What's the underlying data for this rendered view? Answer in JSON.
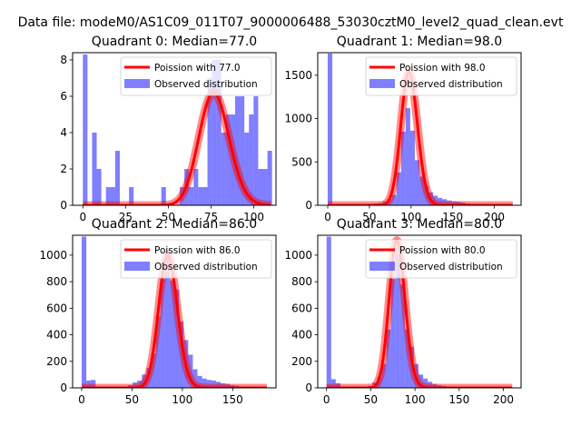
{
  "figure_title": "Data file: modeM0/AS1C09_011T07_9000006488_53030cztM0_level2_quad_clean.evt",
  "colors": {
    "hist": "#0000ff",
    "hist_alpha": 0.5,
    "poisson": "#ff0000",
    "poisson_shade": "#ff0000",
    "axes": "#000000",
    "background": "#ffffff"
  },
  "chart_data": [
    {
      "type": "bar",
      "title": "Quadrant 0: Median=77.0",
      "xlabel": "",
      "ylabel": "",
      "xlim": [
        -6,
        113
      ],
      "ylim": [
        0,
        8.4
      ],
      "xticks": [
        0,
        25,
        50,
        75,
        100
      ],
      "yticks": [
        0,
        2,
        4,
        6,
        8
      ],
      "grid": false,
      "legend_position": "top-right",
      "legend": [
        "Poission with 77.0",
        "Observed distribution"
      ],
      "bin_width": 2.7,
      "series": [
        {
          "name": "Observed distribution",
          "kind": "histogram",
          "bins": [
            {
              "x": 0,
              "count": 8.3
            },
            {
              "x": 5.4,
              "count": 4
            },
            {
              "x": 8.1,
              "count": 2
            },
            {
              "x": 13.5,
              "count": 1
            },
            {
              "x": 16.2,
              "count": 1
            },
            {
              "x": 18.9,
              "count": 3
            },
            {
              "x": 27,
              "count": 1
            },
            {
              "x": 45.9,
              "count": 1
            },
            {
              "x": 56.7,
              "count": 1
            },
            {
              "x": 59.4,
              "count": 2
            },
            {
              "x": 62.1,
              "count": 1
            },
            {
              "x": 64.8,
              "count": 2
            },
            {
              "x": 67.5,
              "count": 1
            },
            {
              "x": 70.2,
              "count": 1
            },
            {
              "x": 72.9,
              "count": 7
            },
            {
              "x": 75.6,
              "count": 8
            },
            {
              "x": 78.3,
              "count": 8
            },
            {
              "x": 81,
              "count": 4
            },
            {
              "x": 83.7,
              "count": 5
            },
            {
              "x": 86.4,
              "count": 5
            },
            {
              "x": 89.1,
              "count": 6
            },
            {
              "x": 91.8,
              "count": 6
            },
            {
              "x": 94.5,
              "count": 4
            },
            {
              "x": 97.2,
              "count": 5
            },
            {
              "x": 99.9,
              "count": 6
            },
            {
              "x": 102.6,
              "count": 2
            },
            {
              "x": 105.3,
              "count": 2
            },
            {
              "x": 108,
              "count": 3
            }
          ]
        },
        {
          "name": "Poission with 77.0",
          "kind": "poisson",
          "mean": 77.0,
          "peak": 6.2,
          "x_range": [
            0,
            110
          ]
        }
      ]
    },
    {
      "type": "bar",
      "title": "Quadrant 1: Median=98.0",
      "xlabel": "",
      "ylabel": "",
      "xlim": [
        -12,
        232
      ],
      "ylim": [
        0,
        1760
      ],
      "xticks": [
        0,
        50,
        100,
        150,
        200
      ],
      "yticks": [
        0,
        500,
        1000,
        1500
      ],
      "grid": false,
      "legend_position": "top-right",
      "legend": [
        "Poission with 98.0",
        "Observed distribution"
      ],
      "bin_width": 5.5,
      "series": [
        {
          "name": "Observed distribution",
          "kind": "histogram",
          "bins": [
            {
              "x": 0,
              "count": 1750
            },
            {
              "x": 5.5,
              "count": 10
            },
            {
              "x": 11,
              "count": 10
            },
            {
              "x": 16.5,
              "count": 5
            },
            {
              "x": 22,
              "count": 5
            },
            {
              "x": 27.5,
              "count": 5
            },
            {
              "x": 33,
              "count": 5
            },
            {
              "x": 38.5,
              "count": 5
            },
            {
              "x": 44,
              "count": 5
            },
            {
              "x": 49.5,
              "count": 10
            },
            {
              "x": 55,
              "count": 20
            },
            {
              "x": 60.5,
              "count": 25
            },
            {
              "x": 66,
              "count": 45
            },
            {
              "x": 71.5,
              "count": 70
            },
            {
              "x": 77,
              "count": 120
            },
            {
              "x": 82.5,
              "count": 380
            },
            {
              "x": 88,
              "count": 850
            },
            {
              "x": 93.5,
              "count": 1120
            },
            {
              "x": 99,
              "count": 860
            },
            {
              "x": 104.5,
              "count": 520
            },
            {
              "x": 110,
              "count": 330
            },
            {
              "x": 115.5,
              "count": 220
            },
            {
              "x": 121,
              "count": 150
            },
            {
              "x": 126.5,
              "count": 110
            },
            {
              "x": 132,
              "count": 85
            },
            {
              "x": 137.5,
              "count": 70
            },
            {
              "x": 143,
              "count": 55
            },
            {
              "x": 148.5,
              "count": 45
            },
            {
              "x": 154,
              "count": 40
            },
            {
              "x": 159.5,
              "count": 30
            },
            {
              "x": 165,
              "count": 20
            },
            {
              "x": 170.5,
              "count": 15
            },
            {
              "x": 176,
              "count": 10
            },
            {
              "x": 181.5,
              "count": 8
            },
            {
              "x": 187,
              "count": 5
            },
            {
              "x": 192.5,
              "count": 4
            },
            {
              "x": 198,
              "count": 3
            },
            {
              "x": 203.5,
              "count": 3
            },
            {
              "x": 209,
              "count": 2
            },
            {
              "x": 214.5,
              "count": 2
            }
          ]
        },
        {
          "name": "Poission with 98.0",
          "kind": "poisson",
          "mean": 98.0,
          "peak": 1540,
          "x_range": [
            0,
            222
          ]
        }
      ]
    },
    {
      "type": "bar",
      "title": "Quadrant 2: Median=86.0",
      "xlabel": "",
      "ylabel": "",
      "xlim": [
        -9,
        193
      ],
      "ylim": [
        0,
        1150
      ],
      "xticks": [
        0,
        50,
        100,
        150
      ],
      "yticks": [
        0,
        200,
        400,
        600,
        800,
        1000
      ],
      "grid": false,
      "legend_position": "top-right",
      "legend": [
        "Poission with 86.0",
        "Observed distribution"
      ],
      "bin_width": 4.6,
      "series": [
        {
          "name": "Observed distribution",
          "kind": "histogram",
          "bins": [
            {
              "x": 0,
              "count": 1140
            },
            {
              "x": 4.6,
              "count": 55
            },
            {
              "x": 9.2,
              "count": 60
            },
            {
              "x": 13.8,
              "count": 5
            },
            {
              "x": 18.4,
              "count": 5
            },
            {
              "x": 23,
              "count": 5
            },
            {
              "x": 27.6,
              "count": 5
            },
            {
              "x": 32.2,
              "count": 5
            },
            {
              "x": 36.8,
              "count": 5
            },
            {
              "x": 41.4,
              "count": 10
            },
            {
              "x": 46,
              "count": 20
            },
            {
              "x": 50.6,
              "count": 40
            },
            {
              "x": 55.2,
              "count": 55
            },
            {
              "x": 59.8,
              "count": 100
            },
            {
              "x": 64.4,
              "count": 150
            },
            {
              "x": 69,
              "count": 260
            },
            {
              "x": 73.6,
              "count": 540
            },
            {
              "x": 78.2,
              "count": 820
            },
            {
              "x": 82.8,
              "count": 1040
            },
            {
              "x": 87.4,
              "count": 810
            },
            {
              "x": 92,
              "count": 740
            },
            {
              "x": 96.6,
              "count": 500
            },
            {
              "x": 101.2,
              "count": 360
            },
            {
              "x": 105.8,
              "count": 250
            },
            {
              "x": 110.4,
              "count": 140
            },
            {
              "x": 115,
              "count": 90
            },
            {
              "x": 119.6,
              "count": 70
            },
            {
              "x": 124.2,
              "count": 60
            },
            {
              "x": 128.8,
              "count": 55
            },
            {
              "x": 133.4,
              "count": 45
            },
            {
              "x": 138,
              "count": 35
            },
            {
              "x": 142.6,
              "count": 30
            },
            {
              "x": 147.2,
              "count": 20
            },
            {
              "x": 151.8,
              "count": 15
            },
            {
              "x": 156.4,
              "count": 10
            },
            {
              "x": 161,
              "count": 6
            },
            {
              "x": 165.6,
              "count": 4
            },
            {
              "x": 170.2,
              "count": 3
            },
            {
              "x": 174.8,
              "count": 2
            },
            {
              "x": 179.4,
              "count": 2
            }
          ]
        },
        {
          "name": "Poission with 86.0",
          "kind": "poisson",
          "mean": 86.0,
          "peak": 1000,
          "x_range": [
            0,
            184
          ]
        }
      ]
    },
    {
      "type": "bar",
      "title": "Quadrant 3: Median=80.0",
      "xlabel": "",
      "ylabel": "",
      "xlim": [
        -10,
        220
      ],
      "ylim": [
        0,
        1150
      ],
      "xticks": [
        0,
        50,
        100,
        150,
        200
      ],
      "yticks": [
        0,
        200,
        400,
        600,
        800,
        1000
      ],
      "grid": false,
      "legend_position": "top-right",
      "legend": [
        "Poission with 80.0",
        "Observed distribution"
      ],
      "bin_width": 5.2,
      "series": [
        {
          "name": "Observed distribution",
          "kind": "histogram",
          "bins": [
            {
              "x": 0,
              "count": 1140
            },
            {
              "x": 5.2,
              "count": 65
            },
            {
              "x": 10.4,
              "count": 35
            },
            {
              "x": 15.6,
              "count": 5
            },
            {
              "x": 20.8,
              "count": 5
            },
            {
              "x": 26,
              "count": 5
            },
            {
              "x": 31.2,
              "count": 5
            },
            {
              "x": 36.4,
              "count": 5
            },
            {
              "x": 41.6,
              "count": 10
            },
            {
              "x": 46.8,
              "count": 15
            },
            {
              "x": 52,
              "count": 40
            },
            {
              "x": 57.2,
              "count": 80
            },
            {
              "x": 62.4,
              "count": 180
            },
            {
              "x": 67.6,
              "count": 440
            },
            {
              "x": 72.8,
              "count": 820
            },
            {
              "x": 78,
              "count": 1000
            },
            {
              "x": 83.2,
              "count": 780
            },
            {
              "x": 88.4,
              "count": 440
            },
            {
              "x": 93.6,
              "count": 310
            },
            {
              "x": 98.8,
              "count": 180
            },
            {
              "x": 104,
              "count": 100
            },
            {
              "x": 109.2,
              "count": 70
            },
            {
              "x": 114.4,
              "count": 45
            },
            {
              "x": 119.6,
              "count": 30
            },
            {
              "x": 124.8,
              "count": 20
            },
            {
              "x": 130,
              "count": 15
            },
            {
              "x": 135.2,
              "count": 10
            },
            {
              "x": 140.4,
              "count": 8
            },
            {
              "x": 145.6,
              "count": 5
            },
            {
              "x": 150.8,
              "count": 3
            },
            {
              "x": 156,
              "count": 2
            },
            {
              "x": 161.2,
              "count": 2
            }
          ]
        },
        {
          "name": "Poission with 80.0",
          "kind": "poisson",
          "mean": 80.0,
          "peak": 1110,
          "x_range": [
            0,
            210
          ]
        }
      ]
    }
  ]
}
